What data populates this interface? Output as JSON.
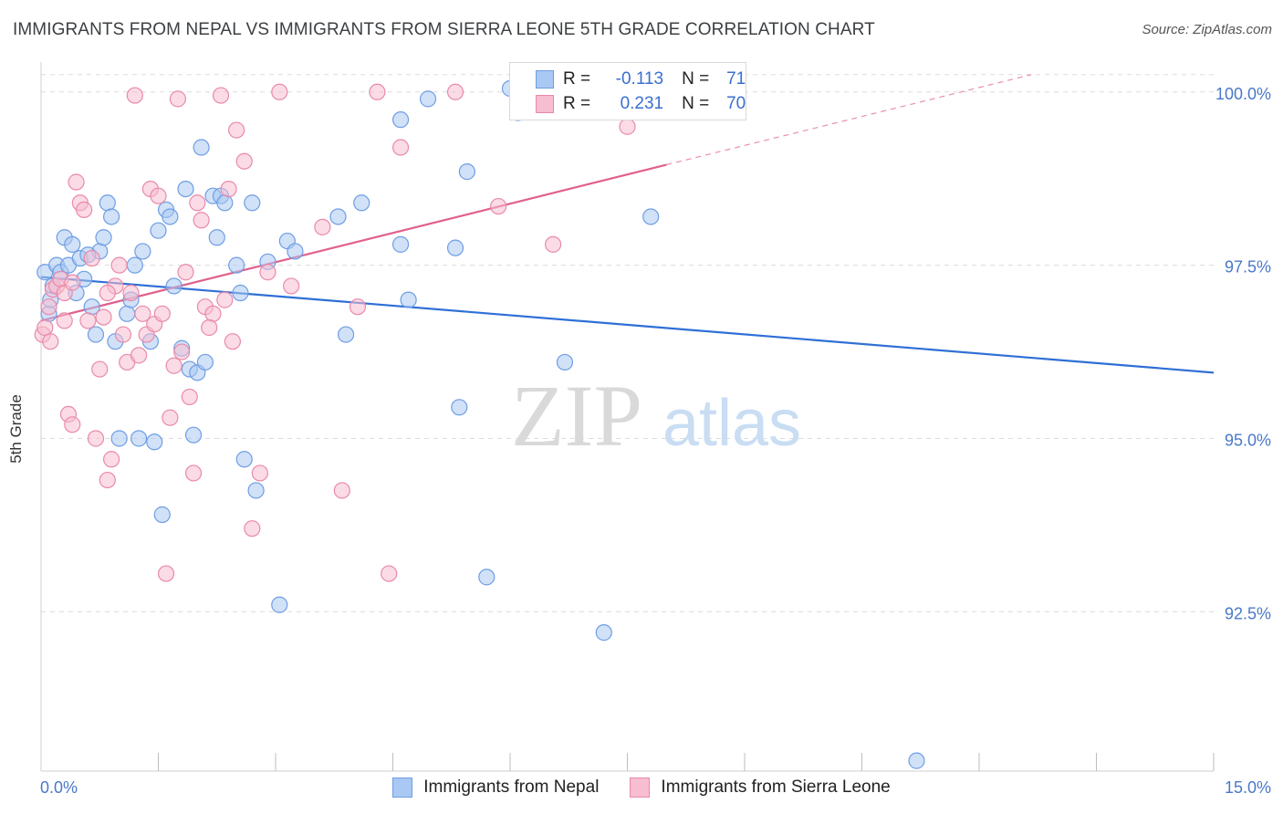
{
  "title": "IMMIGRANTS FROM NEPAL VS IMMIGRANTS FROM SIERRA LEONE 5TH GRADE CORRELATION CHART",
  "source": "Source: ZipAtlas.com",
  "watermark": {
    "zip": "ZIP",
    "atlas": "atlas"
  },
  "legend": {
    "r_label": "R =",
    "n_label": "N =",
    "rows": [
      {
        "r": "-0.113",
        "n": "71",
        "color": "#a9c8f3",
        "border": "#6f9ee3"
      },
      {
        "r": "0.231",
        "n": "70",
        "color": "#f7bdd0",
        "border": "#e98aa9"
      }
    ]
  },
  "bottom_legend": [
    {
      "label": "Immigrants from Nepal",
      "color": "#a9c8f3",
      "border": "#6f9ee3"
    },
    {
      "label": "Immigrants from Sierra Leone",
      "color": "#f7bdd0",
      "border": "#e98aa9"
    }
  ],
  "chart_data": {
    "type": "scatter",
    "title": "IMMIGRANTS FROM NEPAL VS IMMIGRANTS FROM SIERRA LEONE 5TH GRADE CORRELATION CHART",
    "xlabel": "",
    "ylabel": "5th Grade",
    "xlim": [
      0,
      15
    ],
    "ylim": [
      90.2,
      100.3
    ],
    "x_tick_labels": [
      {
        "value": 0,
        "label": "0.0%"
      },
      {
        "value": 15,
        "label": "15.0%"
      }
    ],
    "y_tick_labels": [
      {
        "value": 100,
        "label": "100.0%"
      },
      {
        "value": 97.5,
        "label": "97.5%"
      },
      {
        "value": 95,
        "label": "95.0%"
      },
      {
        "value": 92.5,
        "label": "92.5%"
      }
    ],
    "grid": true,
    "legend_position": "top-center",
    "series": [
      {
        "name": "Immigrants from Nepal",
        "color": "#6f9ee3",
        "fill": "#a9c8f3",
        "trend": {
          "x0": 0,
          "y0": 97.33,
          "x1": 15,
          "y1": 95.95,
          "color": "#2f6fd6"
        },
        "points": [
          [
            0.05,
            97.4
          ],
          [
            0.1,
            96.8
          ],
          [
            0.15,
            97.2
          ],
          [
            0.2,
            97.5
          ],
          [
            0.25,
            97.4
          ],
          [
            0.3,
            97.9
          ],
          [
            0.35,
            97.5
          ],
          [
            0.4,
            97.8
          ],
          [
            0.45,
            97.1
          ],
          [
            0.5,
            97.6
          ],
          [
            0.55,
            97.3
          ],
          [
            0.65,
            96.9
          ],
          [
            0.7,
            96.5
          ],
          [
            0.75,
            97.7
          ],
          [
            0.8,
            97.9
          ],
          [
            0.85,
            98.4
          ],
          [
            0.9,
            98.2
          ],
          [
            0.95,
            96.4
          ],
          [
            1.0,
            95.0
          ],
          [
            1.1,
            96.8
          ],
          [
            1.15,
            97.0
          ],
          [
            1.2,
            97.5
          ],
          [
            1.25,
            95.0
          ],
          [
            1.3,
            97.7
          ],
          [
            1.4,
            96.4
          ],
          [
            1.45,
            94.95
          ],
          [
            1.5,
            98.0
          ],
          [
            1.55,
            93.9
          ],
          [
            1.6,
            98.3
          ],
          [
            1.65,
            98.2
          ],
          [
            1.7,
            97.2
          ],
          [
            1.8,
            96.3
          ],
          [
            1.85,
            98.6
          ],
          [
            1.9,
            96.0
          ],
          [
            1.95,
            95.05
          ],
          [
            2.0,
            95.95
          ],
          [
            2.05,
            99.2
          ],
          [
            2.1,
            96.1
          ],
          [
            2.2,
            98.5
          ],
          [
            2.25,
            97.9
          ],
          [
            2.3,
            98.5
          ],
          [
            2.35,
            98.4
          ],
          [
            2.5,
            97.5
          ],
          [
            2.55,
            97.1
          ],
          [
            2.6,
            94.7
          ],
          [
            2.7,
            98.4
          ],
          [
            2.75,
            94.25
          ],
          [
            2.9,
            97.55
          ],
          [
            3.05,
            92.6
          ],
          [
            3.15,
            97.85
          ],
          [
            3.25,
            97.7
          ],
          [
            3.8,
            98.2
          ],
          [
            3.9,
            96.5
          ],
          [
            4.1,
            98.4
          ],
          [
            4.6,
            97.8
          ],
          [
            4.6,
            99.6
          ],
          [
            4.7,
            97.0
          ],
          [
            4.95,
            99.9
          ],
          [
            5.3,
            97.75
          ],
          [
            5.35,
            95.45
          ],
          [
            5.45,
            98.85
          ],
          [
            5.7,
            93.0
          ],
          [
            6.0,
            100.05
          ],
          [
            6.1,
            99.7
          ],
          [
            6.7,
            96.1
          ],
          [
            7.0,
            100.0
          ],
          [
            7.2,
            92.2
          ],
          [
            7.8,
            98.2
          ],
          [
            11.2,
            90.35
          ],
          [
            0.12,
            97.0
          ],
          [
            0.6,
            97.65
          ]
        ]
      },
      {
        "name": "Immigrants from Sierra Leone",
        "color": "#e98aa9",
        "fill": "#f7bdd0",
        "trend": {
          "x0": 0,
          "y0": 96.7,
          "x1": 8.0,
          "y1": 98.95,
          "x2": 15,
          "y2": 100.9,
          "color": "#e0608d"
        },
        "points": [
          [
            0.02,
            96.5
          ],
          [
            0.05,
            96.6
          ],
          [
            0.1,
            96.9
          ],
          [
            0.15,
            97.15
          ],
          [
            0.2,
            97.2
          ],
          [
            0.25,
            97.3
          ],
          [
            0.3,
            96.7
          ],
          [
            0.35,
            95.35
          ],
          [
            0.4,
            95.2
          ],
          [
            0.45,
            98.7
          ],
          [
            0.5,
            98.4
          ],
          [
            0.55,
            98.3
          ],
          [
            0.6,
            96.7
          ],
          [
            0.65,
            97.6
          ],
          [
            0.7,
            95.0
          ],
          [
            0.75,
            96.0
          ],
          [
            0.8,
            96.75
          ],
          [
            0.85,
            94.4
          ],
          [
            0.9,
            94.7
          ],
          [
            0.95,
            97.2
          ],
          [
            1.0,
            97.5
          ],
          [
            1.05,
            96.5
          ],
          [
            1.1,
            96.1
          ],
          [
            1.15,
            97.1
          ],
          [
            1.2,
            99.95
          ],
          [
            1.3,
            96.8
          ],
          [
            1.35,
            96.5
          ],
          [
            1.4,
            98.6
          ],
          [
            1.45,
            96.65
          ],
          [
            1.5,
            98.5
          ],
          [
            1.55,
            96.8
          ],
          [
            1.6,
            93.05
          ],
          [
            1.65,
            95.3
          ],
          [
            1.75,
            99.9
          ],
          [
            1.8,
            96.25
          ],
          [
            1.85,
            97.4
          ],
          [
            1.9,
            95.6
          ],
          [
            1.95,
            94.5
          ],
          [
            2.0,
            98.4
          ],
          [
            2.05,
            98.15
          ],
          [
            2.1,
            96.9
          ],
          [
            2.2,
            96.8
          ],
          [
            2.3,
            99.95
          ],
          [
            2.4,
            98.6
          ],
          [
            2.45,
            96.4
          ],
          [
            2.5,
            99.45
          ],
          [
            2.6,
            99.0
          ],
          [
            2.7,
            93.7
          ],
          [
            2.8,
            94.5
          ],
          [
            2.9,
            97.4
          ],
          [
            3.05,
            100.0
          ],
          [
            3.6,
            98.05
          ],
          [
            3.85,
            94.25
          ],
          [
            4.05,
            96.9
          ],
          [
            4.3,
            100.0
          ],
          [
            4.45,
            93.05
          ],
          [
            4.6,
            99.2
          ],
          [
            5.3,
            100.0
          ],
          [
            5.85,
            98.35
          ],
          [
            6.55,
            97.8
          ],
          [
            7.5,
            99.5
          ],
          [
            1.25,
            96.2
          ],
          [
            0.85,
            97.1
          ],
          [
            2.35,
            97.0
          ],
          [
            0.3,
            97.1
          ],
          [
            0.4,
            97.25
          ],
          [
            1.7,
            96.05
          ],
          [
            2.15,
            96.6
          ],
          [
            0.12,
            96.4
          ],
          [
            3.2,
            97.2
          ]
        ]
      }
    ]
  }
}
